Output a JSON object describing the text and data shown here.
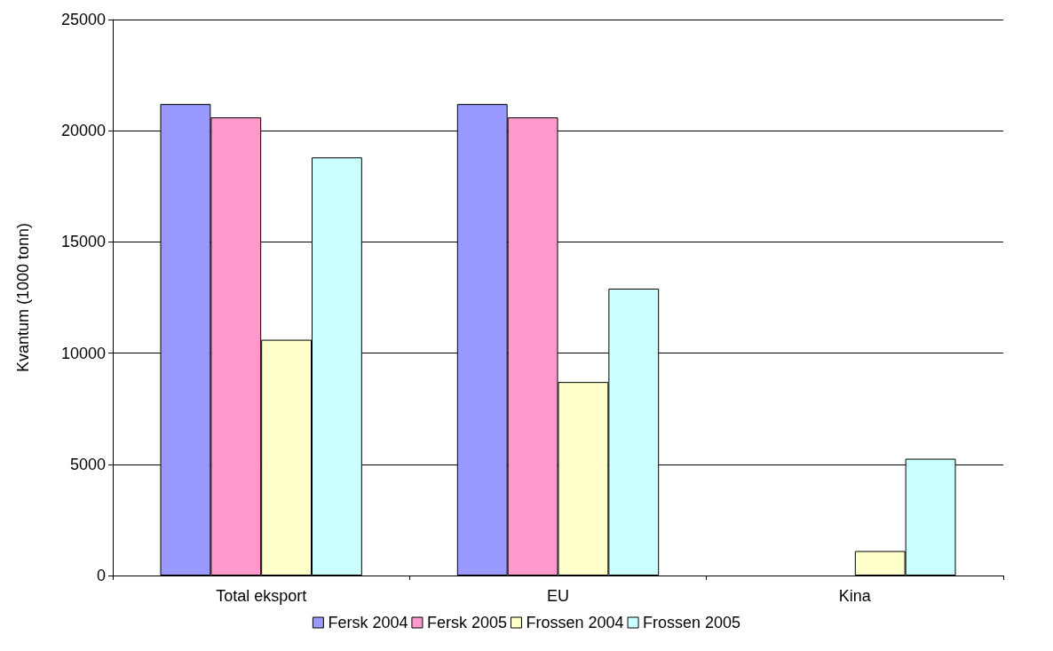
{
  "chart_data": {
    "type": "bar",
    "ylabel": "Kvantum (1000 tonn)",
    "categories": [
      "Total eksport",
      "EU",
      "Kina"
    ],
    "series": [
      {
        "name": "Fersk 2004",
        "color": "#9999ff",
        "values": [
          21200,
          21200,
          null
        ]
      },
      {
        "name": "Fersk 2005",
        "color": "#ff99cc",
        "values": [
          20600,
          20600,
          null
        ]
      },
      {
        "name": "Frossen 2004",
        "color": "#ffffcc",
        "values": [
          10600,
          8700,
          1100
        ]
      },
      {
        "name": "Frossen 2005",
        "color": "#ccffff",
        "values": [
          18800,
          12900,
          5250
        ]
      }
    ],
    "ylim": [
      0,
      25000
    ],
    "yticks": [
      0,
      5000,
      10000,
      15000,
      20000,
      25000
    ],
    "grid": "y",
    "legend": "bottom"
  }
}
